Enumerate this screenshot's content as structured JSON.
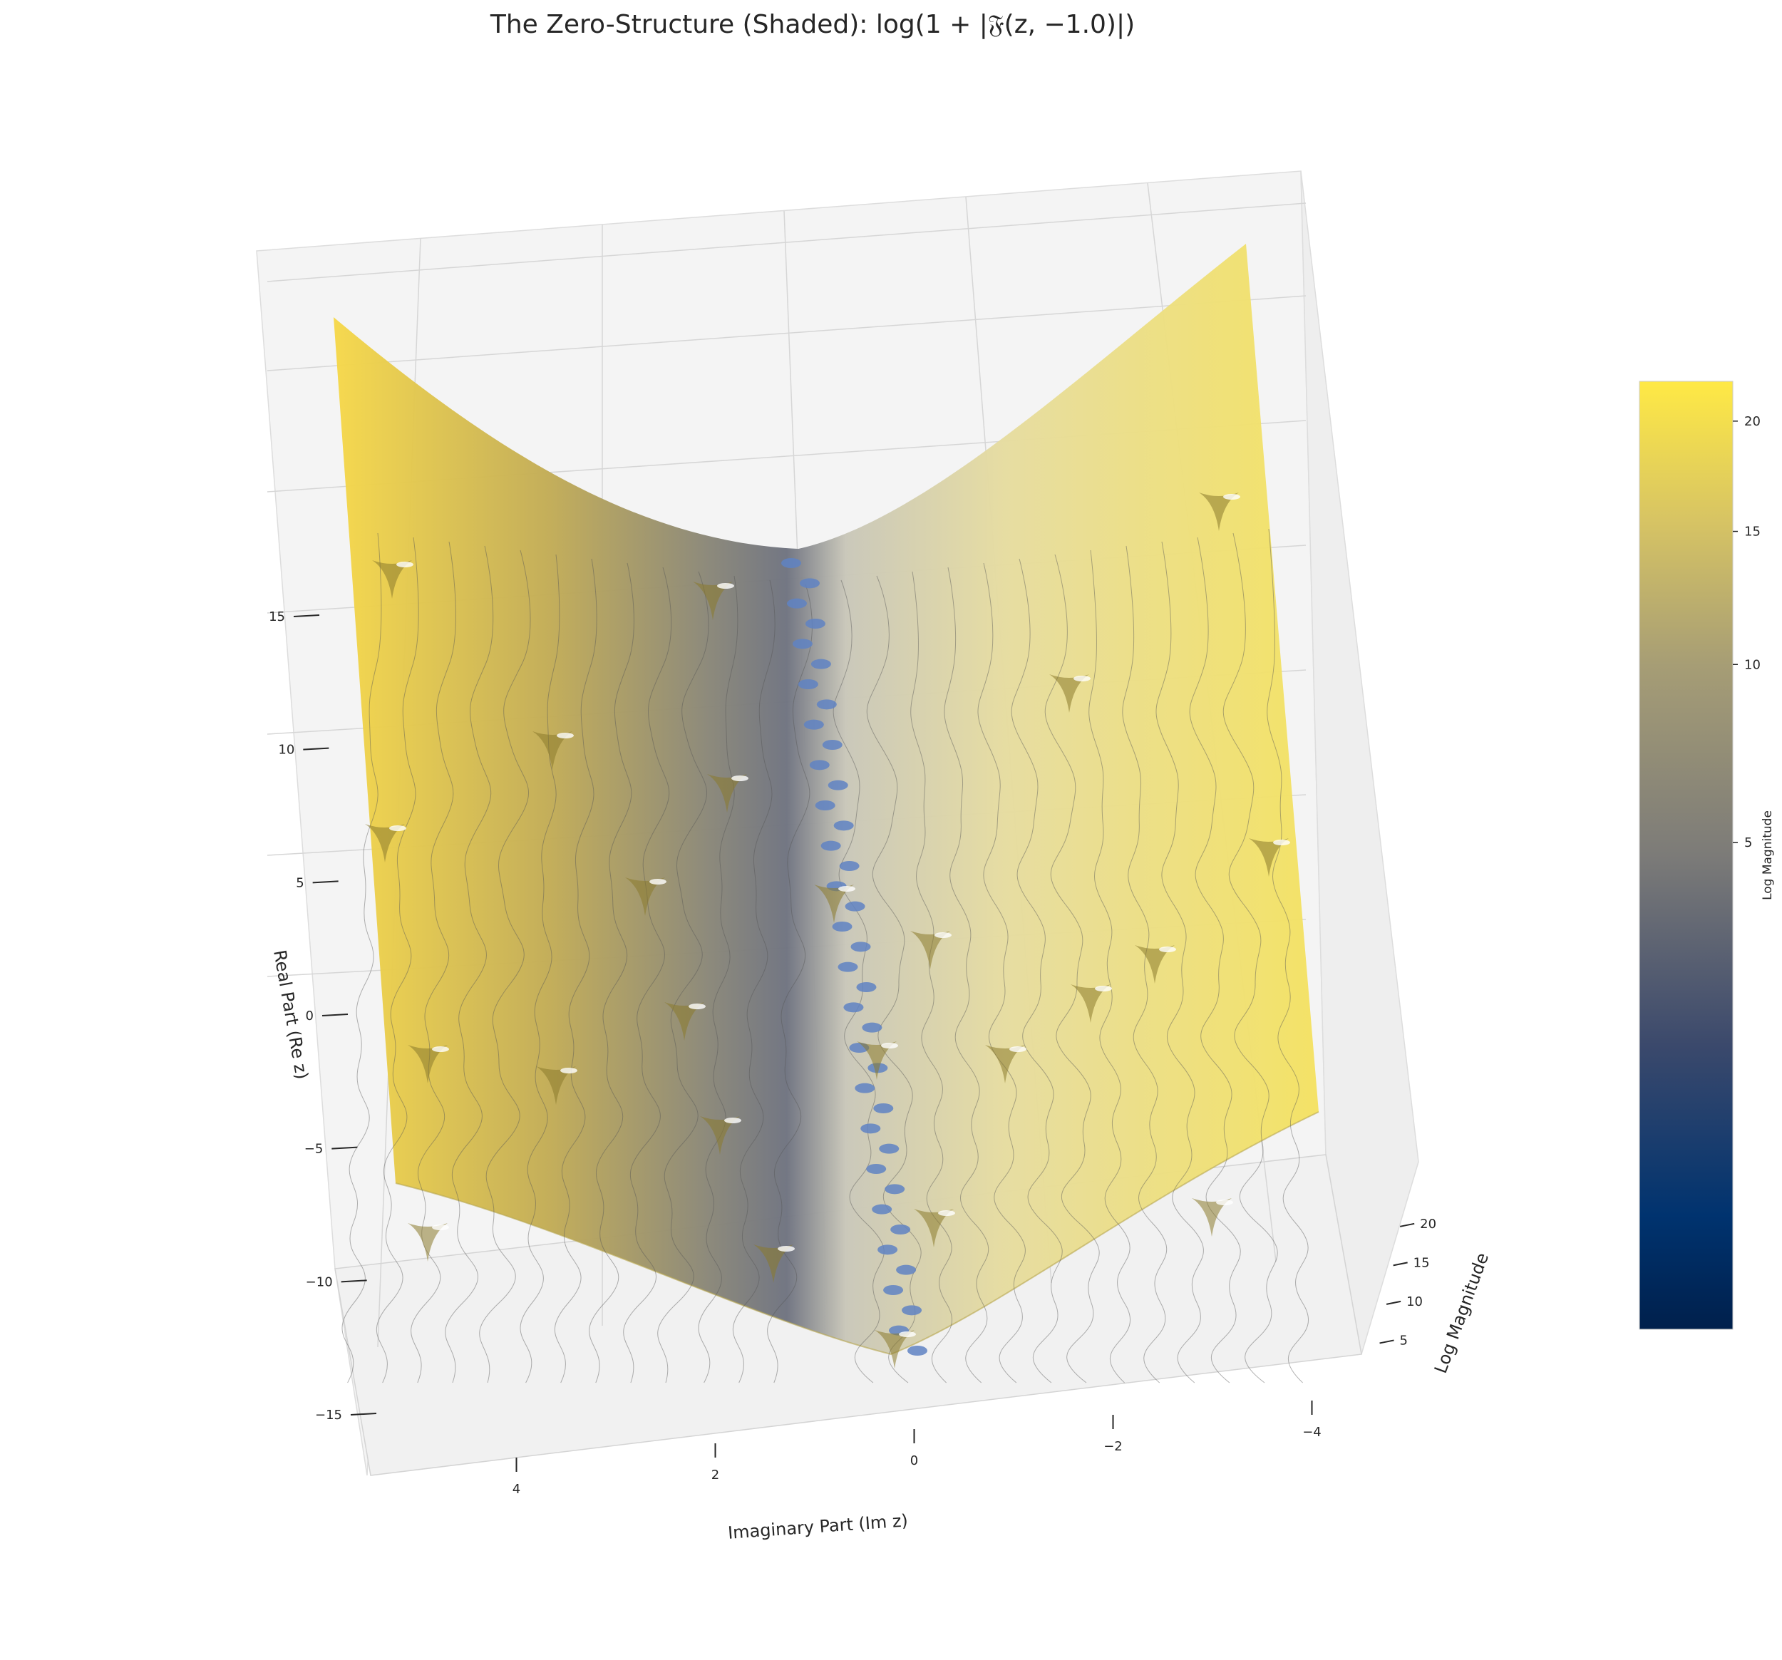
{
  "chart_data": {
    "type": "surface3d",
    "title": "The Zero-Structure (Shaded): log(1 + |𝔉(z, −1.0)|)",
    "xlabel": "Imaginary Part (Im z)",
    "ylabel": "Real Part (Re z)",
    "zlabel": "Log Magnitude",
    "x_ticks": [
      "4",
      "2",
      "0",
      "−2",
      "−4"
    ],
    "x_tick_values": [
      4,
      2,
      0,
      -2,
      -4
    ],
    "y_ticks": [
      "15",
      "10",
      "5",
      "0",
      "−5",
      "−10",
      "−15"
    ],
    "y_tick_values": [
      15,
      10,
      5,
      0,
      -5,
      -10,
      -15
    ],
    "z_ticks": [
      "20",
      "15",
      "10",
      "5"
    ],
    "z_tick_values": [
      20,
      15,
      10,
      5
    ],
    "xlim": [
      -5,
      5
    ],
    "ylim": [
      -15,
      15
    ],
    "zlim": [
      0,
      22
    ],
    "colormap": "cividis",
    "grid": true,
    "contours": true,
    "colorbar": {
      "label": "Log Magnitude",
      "ticks": [
        "20",
        "15",
        "10",
        "5"
      ],
      "tick_values": [
        20,
        15,
        10,
        5
      ],
      "range": [
        0,
        22
      ]
    },
    "colors": {
      "low": "#00204c",
      "mid": "#7c7b78",
      "high": "#ffe945",
      "zero_markers": "#5f83c3"
    }
  }
}
